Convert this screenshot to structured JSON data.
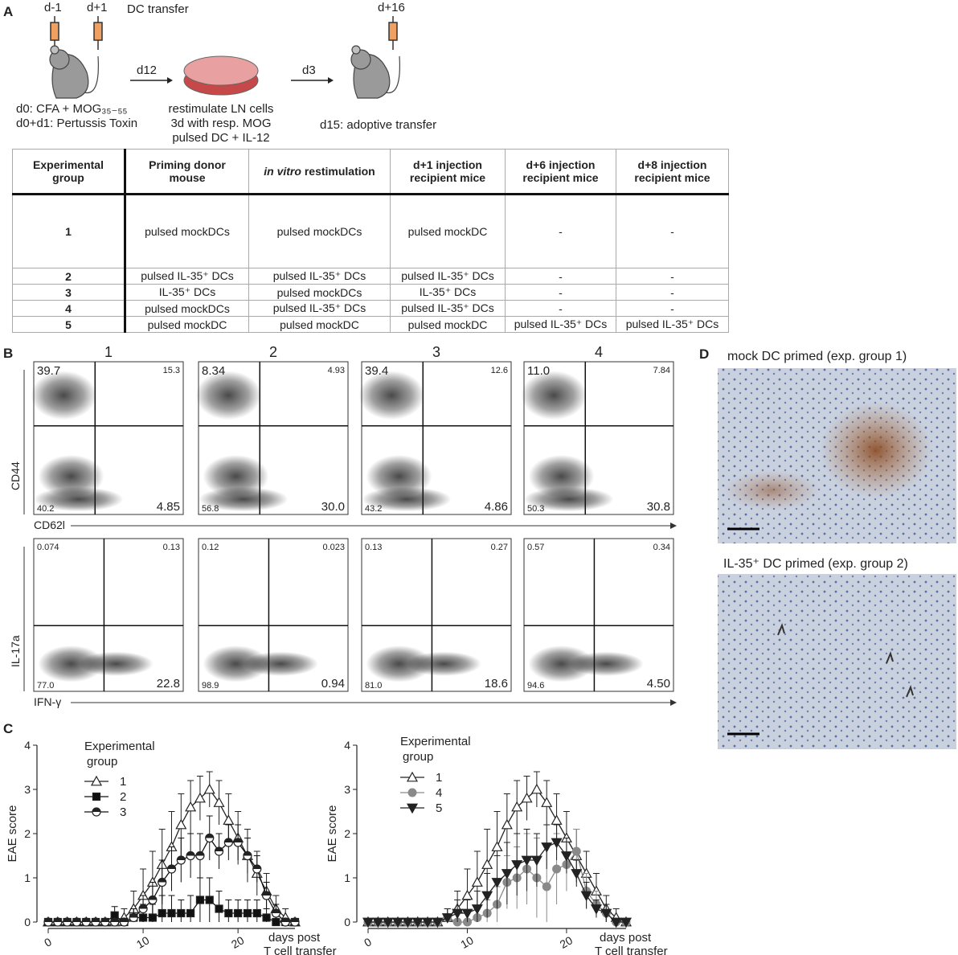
{
  "panel_labels": [
    "A",
    "B",
    "C",
    "D"
  ],
  "scheme": {
    "d_minus1": "d-1",
    "d_plus1": "d+1",
    "dc_transfer": "DC transfer",
    "d12": "d12",
    "d3": "d3",
    "d_plus16": "d+16",
    "immunization": [
      "d0: CFA + MOG₃₅₋₅₅",
      "d0+d1:  Pertussis Toxin"
    ],
    "restim": [
      "restimulate LN cells",
      "3d with resp. MOG",
      "pulsed DC + IL-12"
    ],
    "transfer": "d15: adoptive transfer"
  },
  "table": {
    "header": [
      [
        "Experimental",
        "group"
      ],
      [
        "Priming donor",
        "mouse"
      ],
      {
        "italic": "in vitro",
        "text": "restimulation"
      },
      [
        "d+1 injection",
        "recipient mice"
      ],
      [
        "d+6 injection",
        "recipient mice"
      ],
      [
        "d+8 injection",
        "recipient mice"
      ]
    ],
    "rows": [
      [
        "1",
        "pulsed mockDCs",
        "pulsed mockDCs",
        "pulsed mockDC",
        "-",
        "-"
      ],
      [
        "2",
        "pulsed IL-35⁺ DCs",
        "pulsed IL-35⁺ DCs",
        "pulsed IL-35⁺ DCs",
        "-",
        "-"
      ],
      [
        "3",
        "IL-35⁺ DCs",
        "pulsed mockDCs",
        "IL-35⁺ DCs",
        "-",
        "-"
      ],
      [
        "4",
        "pulsed mockDCs",
        "pulsed IL-35⁺ DCs",
        "pulsed IL-35⁺ DCs",
        "-",
        "-"
      ],
      [
        "5",
        "pulsed mockDC",
        "pulsed mockDC",
        "pulsed mockDC",
        "pulsed IL-35⁺ DCs",
        "pulsed IL-35⁺ DCs"
      ]
    ]
  },
  "flow": {
    "columns": [
      "1",
      "2",
      "3",
      "4"
    ],
    "top": {
      "y_label": "CD44",
      "x_label": "CD62l",
      "quadrants": [
        {
          "ul": "39.7",
          "ur": "15.3",
          "ll": "40.2",
          "lr": "4.85"
        },
        {
          "ul": "8.34",
          "ur": "4.93",
          "ll": "56.8",
          "lr": "30.0"
        },
        {
          "ul": "39.4",
          "ur": "12.6",
          "ll": "43.2",
          "lr": "4.86"
        },
        {
          "ul": "11.0",
          "ur": "7.84",
          "ll": "50.3",
          "lr": "30.8"
        }
      ]
    },
    "bottom": {
      "y_label": "IL-17a",
      "x_label": "IFN-γ",
      "quadrants": [
        {
          "ul": "0.074",
          "ur": "0.13",
          "ll": "77.0",
          "lr": "22.8"
        },
        {
          "ul": "0.12",
          "ur": "0.023",
          "ll": "98.9",
          "lr": "0.94"
        },
        {
          "ul": "0.13",
          "ur": "0.27",
          "ll": "81.0",
          "lr": "18.6"
        },
        {
          "ul": "0.57",
          "ur": "0.34",
          "ll": "94.6",
          "lr": "4.50"
        }
      ]
    }
  },
  "histology": {
    "titles": [
      "mock DC primed (exp. group 1)",
      "IL-35⁺ DC primed (exp. group 2)"
    ]
  },
  "chart_data": [
    {
      "type": "line",
      "y_label": "EAE score",
      "x_label": [
        "days post",
        "T cell transfer"
      ],
      "legend_title": [
        "Experimental",
        "group"
      ],
      "x": [
        0,
        1,
        2,
        3,
        4,
        5,
        6,
        7,
        8,
        9,
        10,
        11,
        12,
        13,
        14,
        15,
        16,
        17,
        18,
        19,
        20,
        21,
        22,
        23,
        24,
        25,
        26
      ],
      "xlim": [
        0,
        26
      ],
      "xticks": [
        0,
        10,
        20
      ],
      "ylim": [
        0,
        4
      ],
      "yticks": [
        0,
        1,
        2,
        3,
        4
      ],
      "series": [
        {
          "name": "1",
          "color": "#222222",
          "marker": "triangle-open",
          "values": [
            0,
            0,
            0,
            0,
            0,
            0,
            0,
            0,
            0.1,
            0.3,
            0.6,
            0.9,
            1.3,
            1.7,
            2.2,
            2.6,
            2.8,
            3.0,
            2.7,
            2.3,
            1.9,
            1.5,
            1.1,
            0.7,
            0.3,
            0.1,
            0
          ],
          "errors": [
            0,
            0,
            0,
            0,
            0,
            0,
            0,
            0,
            0.2,
            0.4,
            0.6,
            0.7,
            0.8,
            0.8,
            0.7,
            0.6,
            0.5,
            0.4,
            0.5,
            0.6,
            0.6,
            0.6,
            0.5,
            0.4,
            0.3,
            0.2,
            0
          ]
        },
        {
          "name": "2",
          "color": "#111111",
          "marker": "square",
          "values": [
            0,
            0,
            0,
            0,
            0,
            0,
            0,
            0.15,
            0,
            0.1,
            0.1,
            0.1,
            0.2,
            0.2,
            0.2,
            0.2,
            0.5,
            0.5,
            0.3,
            0.2,
            0.2,
            0.2,
            0.2,
            0.1,
            0,
            0,
            0
          ],
          "errors": [
            0,
            0,
            0,
            0,
            0,
            0,
            0,
            0.2,
            0,
            0.2,
            0.3,
            0.3,
            0.4,
            0.4,
            0.3,
            0.4,
            0.5,
            0.5,
            0.4,
            0.3,
            0.3,
            0.3,
            0.3,
            0.2,
            0,
            0,
            0
          ]
        },
        {
          "name": "3",
          "color": "#111111",
          "marker": "circle-half",
          "values": [
            0,
            0,
            0,
            0,
            0,
            0,
            0,
            0,
            0,
            0.1,
            0.3,
            0.5,
            0.9,
            1.2,
            1.4,
            1.5,
            1.5,
            1.9,
            1.6,
            1.8,
            1.8,
            1.5,
            1.2,
            0.6,
            0.2,
            0,
            0
          ],
          "errors": [
            0,
            0,
            0,
            0,
            0,
            0,
            0,
            0,
            0,
            0.2,
            0.3,
            0.4,
            0.5,
            0.5,
            0.5,
            0.5,
            0.5,
            0.5,
            0.4,
            0.4,
            0.4,
            0.4,
            0.3,
            0.3,
            0.2,
            0,
            0
          ]
        }
      ]
    },
    {
      "type": "line",
      "y_label": "EAE score",
      "x_label": [
        "days post",
        "T cell transfer"
      ],
      "legend_title": [
        "Experimental",
        "group"
      ],
      "x": [
        0,
        1,
        2,
        3,
        4,
        5,
        6,
        7,
        8,
        9,
        10,
        11,
        12,
        13,
        14,
        15,
        16,
        17,
        18,
        19,
        20,
        21,
        22,
        23,
        24,
        25,
        26
      ],
      "xlim": [
        0,
        26
      ],
      "xticks": [
        0,
        10,
        20
      ],
      "ylim": [
        0,
        4
      ],
      "yticks": [
        0,
        1,
        2,
        3,
        4
      ],
      "series": [
        {
          "name": "1",
          "color": "#222222",
          "marker": "triangle-open",
          "values": [
            0,
            0,
            0,
            0,
            0,
            0,
            0,
            0,
            0.1,
            0.3,
            0.6,
            0.9,
            1.3,
            1.7,
            2.2,
            2.6,
            2.8,
            3.0,
            2.7,
            2.3,
            1.9,
            1.5,
            1.1,
            0.7,
            0.3,
            0.1,
            0
          ],
          "errors": [
            0,
            0,
            0,
            0,
            0,
            0,
            0,
            0,
            0.2,
            0.4,
            0.6,
            0.7,
            0.8,
            0.8,
            0.7,
            0.6,
            0.5,
            0.4,
            0.5,
            0.6,
            0.6,
            0.6,
            0.5,
            0.4,
            0.3,
            0.2,
            0
          ]
        },
        {
          "name": "4",
          "color": "#8a8a8a",
          "marker": "circle",
          "values": [
            0,
            0,
            0,
            0,
            0,
            0,
            0,
            0,
            0.1,
            0,
            0,
            0.1,
            0.2,
            0.4,
            0.9,
            1.0,
            1.2,
            1.0,
            0.8,
            1.2,
            1.3,
            1.6,
            0.7,
            0.4,
            0.2,
            0,
            0
          ],
          "errors": [
            0,
            0,
            0,
            0,
            0,
            0,
            0,
            0,
            0.2,
            0,
            0,
            0.2,
            0.3,
            0.4,
            0.6,
            0.7,
            0.8,
            0.9,
            0.9,
            0.8,
            0.6,
            0.5,
            0.4,
            0.3,
            0.2,
            0,
            0
          ]
        },
        {
          "name": "5",
          "color": "#222222",
          "marker": "triangle-down",
          "values": [
            0,
            0,
            0,
            0,
            0,
            0,
            0,
            0,
            0.1,
            0.2,
            0.2,
            0.3,
            0.6,
            0.9,
            1.1,
            1.3,
            1.4,
            1.4,
            1.7,
            1.8,
            1.5,
            1.1,
            0.6,
            0.3,
            0.2,
            0,
            0
          ],
          "errors": [
            0,
            0,
            0,
            0,
            0,
            0,
            0,
            0,
            0.2,
            0.3,
            0.3,
            0.4,
            0.5,
            0.6,
            0.7,
            0.7,
            0.7,
            0.6,
            0.5,
            0.4,
            0.4,
            0.3,
            0.3,
            0.2,
            0.2,
            0,
            0
          ]
        }
      ]
    }
  ]
}
